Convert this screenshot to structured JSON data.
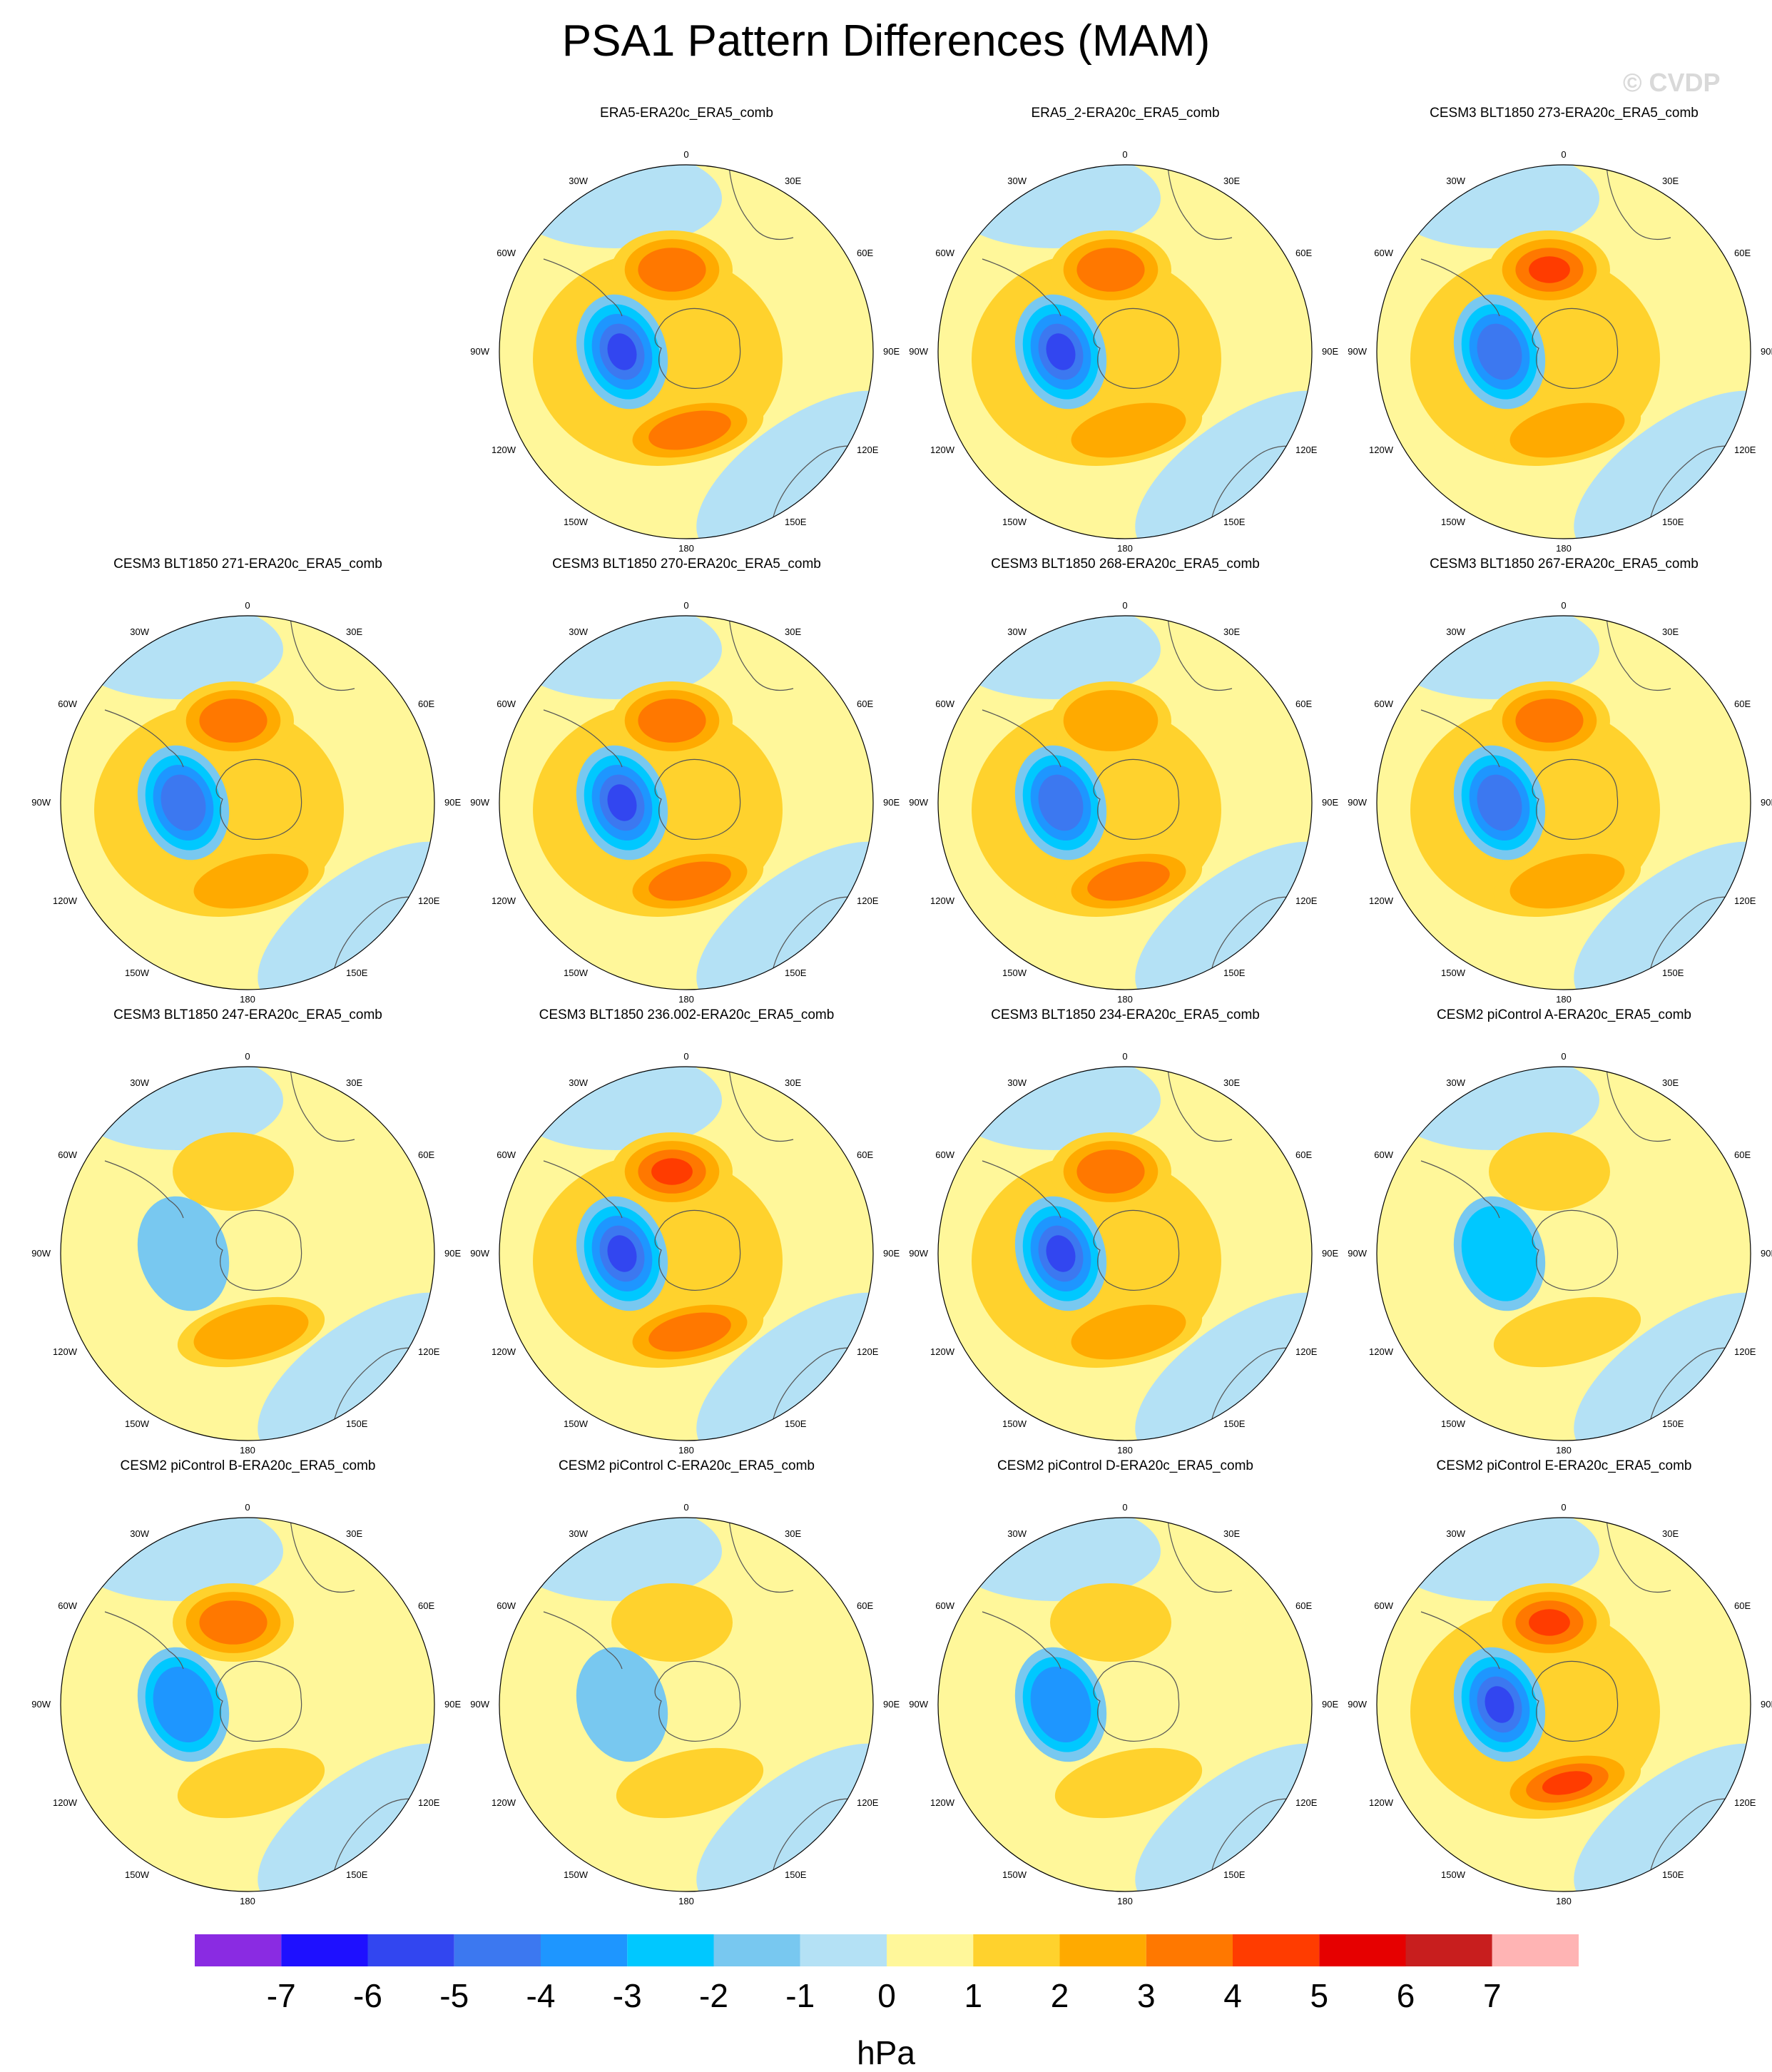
{
  "title": "PSA1 Pattern Differences (MAM)",
  "watermark": "© CVDP",
  "units": "hPa",
  "colorbar": {
    "colors": [
      "#8a2be2",
      "#1e10ff",
      "#3246f0",
      "#3c78f0",
      "#1e96ff",
      "#00c8ff",
      "#78c8f0",
      "#b4e1f5",
      "#fff79a",
      "#ffd22d",
      "#ffaa00",
      "#ff7800",
      "#ff3c00",
      "#e60000",
      "#c81e1e",
      "#ffb4b4"
    ],
    "tick_labels": [
      "-7",
      "-6",
      "-5",
      "-4",
      "-3",
      "-2",
      "-1",
      "0",
      "1",
      "2",
      "3",
      "4",
      "5",
      "6",
      "7"
    ]
  },
  "map_labels": {
    "lon_0": "0",
    "lon_30e": "30E",
    "lon_60e": "60E",
    "lon_90e": "90E",
    "lon_120e": "120E",
    "lon_150e": "150E",
    "lon_180": "180",
    "lon_150w": "150W",
    "lon_120w": "120W",
    "lon_90w": "90W",
    "lon_60w": "60W",
    "lon_30w": "30W"
  },
  "panels": [
    {
      "title": "ERA5-ERA20c_ERA5_comb",
      "row": 0,
      "col": 1,
      "neg": 5,
      "pos1": 3,
      "pos2": 3,
      "ring": 1
    },
    {
      "title": "ERA5_2-ERA20c_ERA5_comb",
      "row": 0,
      "col": 2,
      "neg": 5,
      "pos1": 3,
      "pos2": 2,
      "ring": 1
    },
    {
      "title": "CESM3 BLT1850 273-ERA20c_ERA5_comb",
      "row": 0,
      "col": 3,
      "neg": 4,
      "pos1": 4,
      "pos2": 2,
      "ring": 1
    },
    {
      "title": "CESM3 BLT1850 271-ERA20c_ERA5_comb",
      "row": 1,
      "col": 0,
      "neg": 4,
      "pos1": 3,
      "pos2": 2,
      "ring": 1
    },
    {
      "title": "CESM3 BLT1850 270-ERA20c_ERA5_comb",
      "row": 1,
      "col": 1,
      "neg": 5,
      "pos1": 3,
      "pos2": 3,
      "ring": 1
    },
    {
      "title": "CESM3 BLT1850 268-ERA20c_ERA5_comb",
      "row": 1,
      "col": 2,
      "neg": 4,
      "pos1": 2,
      "pos2": 3,
      "ring": 1
    },
    {
      "title": "CESM3 BLT1850 267-ERA20c_ERA5_comb",
      "row": 1,
      "col": 3,
      "neg": 4,
      "pos1": 3,
      "pos2": 2,
      "ring": 1
    },
    {
      "title": "CESM3 BLT1850 247-ERA20c_ERA5_comb",
      "row": 2,
      "col": 0,
      "neg": 1,
      "pos1": 1,
      "pos2": 2,
      "ring": 0
    },
    {
      "title": "CESM3 BLT1850 236.002-ERA20c_ERA5_comb",
      "row": 2,
      "col": 1,
      "neg": 5,
      "pos1": 4,
      "pos2": 3,
      "ring": 1
    },
    {
      "title": "CESM3 BLT1850 234-ERA20c_ERA5_comb",
      "row": 2,
      "col": 2,
      "neg": 5,
      "pos1": 3,
      "pos2": 2,
      "ring": 1
    },
    {
      "title": "CESM2 piControl A-ERA20c_ERA5_comb",
      "row": 2,
      "col": 3,
      "neg": 2,
      "pos1": 1,
      "pos2": 1,
      "ring": 0
    },
    {
      "title": "CESM2 piControl B-ERA20c_ERA5_comb",
      "row": 3,
      "col": 0,
      "neg": 3,
      "pos1": 3,
      "pos2": 1,
      "ring": 0
    },
    {
      "title": "CESM2 piControl C-ERA20c_ERA5_comb",
      "row": 3,
      "col": 1,
      "neg": 1,
      "pos1": 1,
      "pos2": 1,
      "ring": 0
    },
    {
      "title": "CESM2 piControl D-ERA20c_ERA5_comb",
      "row": 3,
      "col": 2,
      "neg": 3,
      "pos1": 1,
      "pos2": 1,
      "ring": 0
    },
    {
      "title": "CESM2 piControl E-ERA20c_ERA5_comb",
      "row": 3,
      "col": 3,
      "neg": 5,
      "pos1": 4,
      "pos2": 4,
      "ring": 1
    }
  ]
}
